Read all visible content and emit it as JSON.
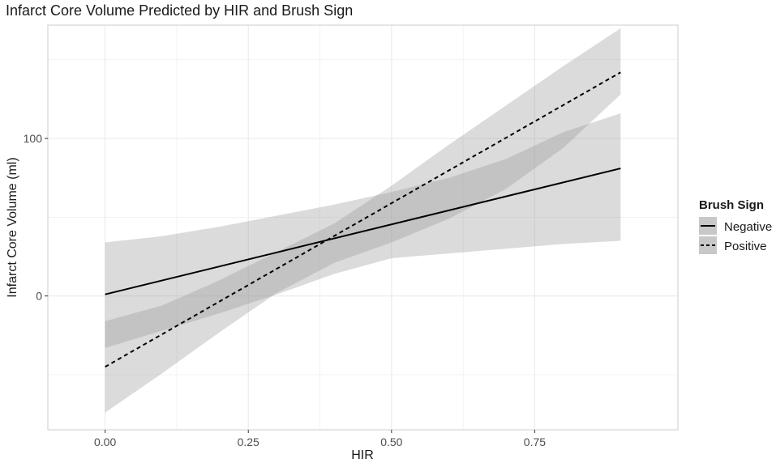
{
  "chart_data": {
    "type": "line",
    "title": "Infarct Core Volume Predicted by HIR and Brush Sign",
    "xlabel": "HIR",
    "ylabel": "Infarct Core Volume (ml)",
    "xlim": [
      -0.1,
      1.0
    ],
    "ylim": [
      -85,
      172
    ],
    "x_ticks": [
      0.0,
      0.25,
      0.5,
      0.75
    ],
    "x_tick_labels": [
      "0.00",
      "0.25",
      "0.50",
      "0.75"
    ],
    "y_ticks": [
      0,
      100
    ],
    "y_tick_labels": [
      "0",
      "100"
    ],
    "grid": true,
    "legend": {
      "title": "Brush Sign",
      "position": "right",
      "entries": [
        "Negative",
        "Positive"
      ]
    },
    "series": [
      {
        "name": "Negative",
        "line_style": "solid",
        "x": [
          0.0,
          0.9
        ],
        "y": [
          1,
          81
        ],
        "ci_x": [
          0.0,
          0.1,
          0.2,
          0.3,
          0.4,
          0.5,
          0.6,
          0.7,
          0.8,
          0.9
        ],
        "ci_lower": [
          -33,
          -22,
          -11,
          1,
          14,
          24,
          27,
          30,
          33,
          35
        ],
        "ci_upper": [
          34,
          38,
          44,
          51,
          58,
          66,
          75,
          87,
          104,
          116
        ]
      },
      {
        "name": "Positive",
        "line_style": "dashed",
        "x": [
          0.0,
          0.9
        ],
        "y": [
          -45,
          142
        ],
        "ci_x": [
          0.0,
          0.1,
          0.2,
          0.3,
          0.4,
          0.5,
          0.6,
          0.7,
          0.8,
          0.9
        ],
        "ci_lower": [
          -74,
          -49,
          -23,
          2,
          21,
          34,
          49,
          68,
          94,
          128
        ],
        "ci_upper": [
          -16,
          -6,
          10,
          28,
          46,
          70,
          96,
          121,
          146,
          170
        ]
      }
    ],
    "colors": {
      "band": "#d9d9d9",
      "band_overlap": "#b3b3b3",
      "line": "#000000",
      "grid": "#ebebeb",
      "panel_border": "#cccccc"
    }
  }
}
